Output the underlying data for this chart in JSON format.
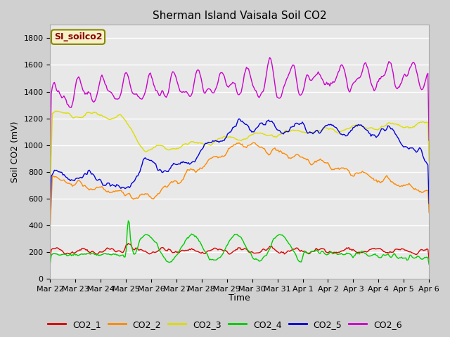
{
  "title": "Sherman Island Vaisala Soil CO2",
  "ylabel": "Soil CO2 (mV)",
  "xlabel": "Time",
  "legend_label": "SI_soilco2",
  "ylim": [
    0,
    1900
  ],
  "yticks": [
    0,
    200,
    400,
    600,
    800,
    1000,
    1200,
    1400,
    1600,
    1800
  ],
  "xtick_labels": [
    "Mar 22",
    "Mar 23",
    "Mar 24",
    "Mar 25",
    "Mar 26",
    "Mar 27",
    "Mar 28",
    "Mar 29",
    "Mar 30",
    "Mar 31",
    "Apr 1",
    "Apr 2",
    "Apr 3",
    "Apr 4",
    "Apr 5",
    "Apr 6"
  ],
  "colors": {
    "CO2_1": "#dd0000",
    "CO2_2": "#ff8800",
    "CO2_3": "#dddd00",
    "CO2_4": "#00cc00",
    "CO2_5": "#0000dd",
    "CO2_6": "#cc00cc"
  },
  "fig_bg": "#d0d0d0",
  "plot_bg": "#e8e8e8",
  "grid_color": "#ffffff",
  "title_fontsize": 11,
  "axis_label_fontsize": 9,
  "tick_label_fontsize": 8,
  "legend_fontsize": 9
}
